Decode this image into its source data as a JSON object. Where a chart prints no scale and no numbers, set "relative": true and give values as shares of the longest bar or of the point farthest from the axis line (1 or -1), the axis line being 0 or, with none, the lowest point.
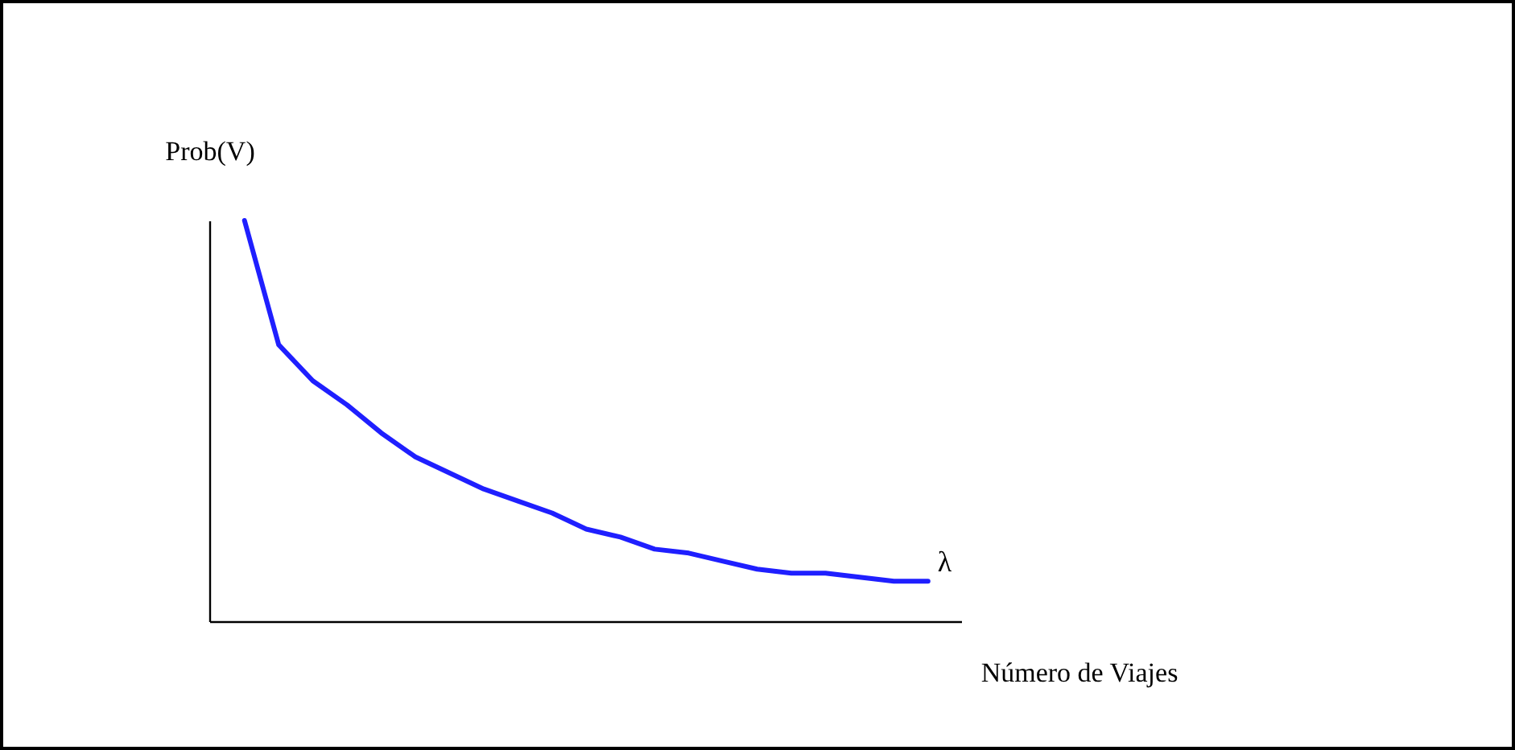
{
  "chart_data": {
    "type": "line",
    "relative": true,
    "xlabel": "Número de Viajes",
    "ylabel": "Prob(V)",
    "categories": [
      null,
      null,
      null,
      null,
      null,
      null,
      null,
      null,
      null,
      null,
      null,
      null,
      null,
      null,
      null,
      null,
      null,
      null,
      null,
      null,
      null
    ],
    "series": [
      {
        "color": "#1f1fff",
        "values": [
          1,
          0.69,
          0.6,
          0.54,
          0.47,
          0.41,
          0.37,
          0.33,
          0.3,
          0.27,
          0.23,
          0.21,
          0.18,
          0.17,
          0.15,
          0.13,
          0.12,
          0.12,
          0.11,
          0.1,
          0.1
        ]
      }
    ],
    "annotations": [
      "λ"
    ]
  }
}
